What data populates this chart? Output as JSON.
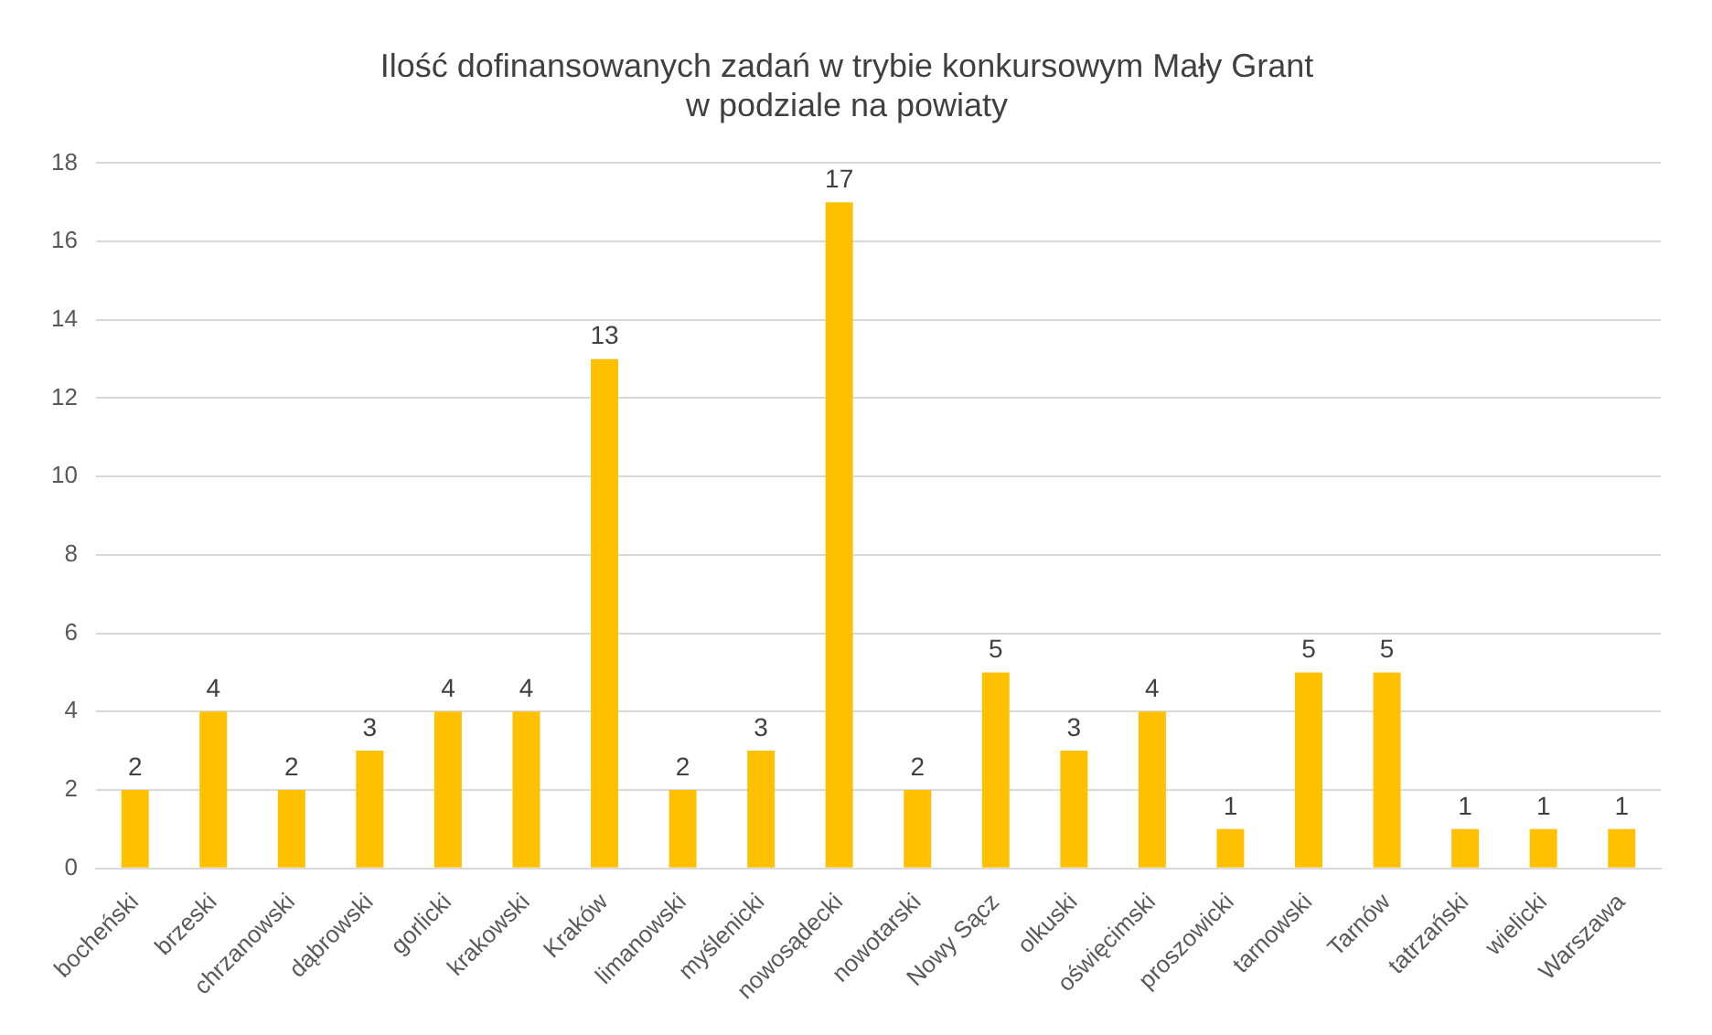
{
  "chart_data": {
    "type": "bar",
    "title": "Ilość dofinansowanych zadań w trybie konkursowym Mały Grant\nw podziale na powiaty",
    "categories": [
      "bocheński",
      "brzeski",
      "chrzanowski",
      "dąbrowski",
      "gorlicki",
      "krakowski",
      "Kraków",
      "limanowski",
      "myślenicki",
      "nowosądecki",
      "nowotarski",
      "Nowy Sącz",
      "olkuski",
      "oświęcimski",
      "proszowicki",
      "tarnowski",
      "Tarnów",
      "tatrzański",
      "wielicki",
      "Warszawa"
    ],
    "values": [
      2,
      4,
      2,
      3,
      4,
      4,
      13,
      2,
      3,
      17,
      2,
      5,
      3,
      4,
      1,
      5,
      5,
      1,
      1,
      1
    ],
    "color": "#ffc000",
    "ylim": [
      0,
      18
    ],
    "yticks": [
      0,
      2,
      4,
      6,
      8,
      10,
      12,
      14,
      16,
      18
    ],
    "grid": "y",
    "data_labels": true
  }
}
